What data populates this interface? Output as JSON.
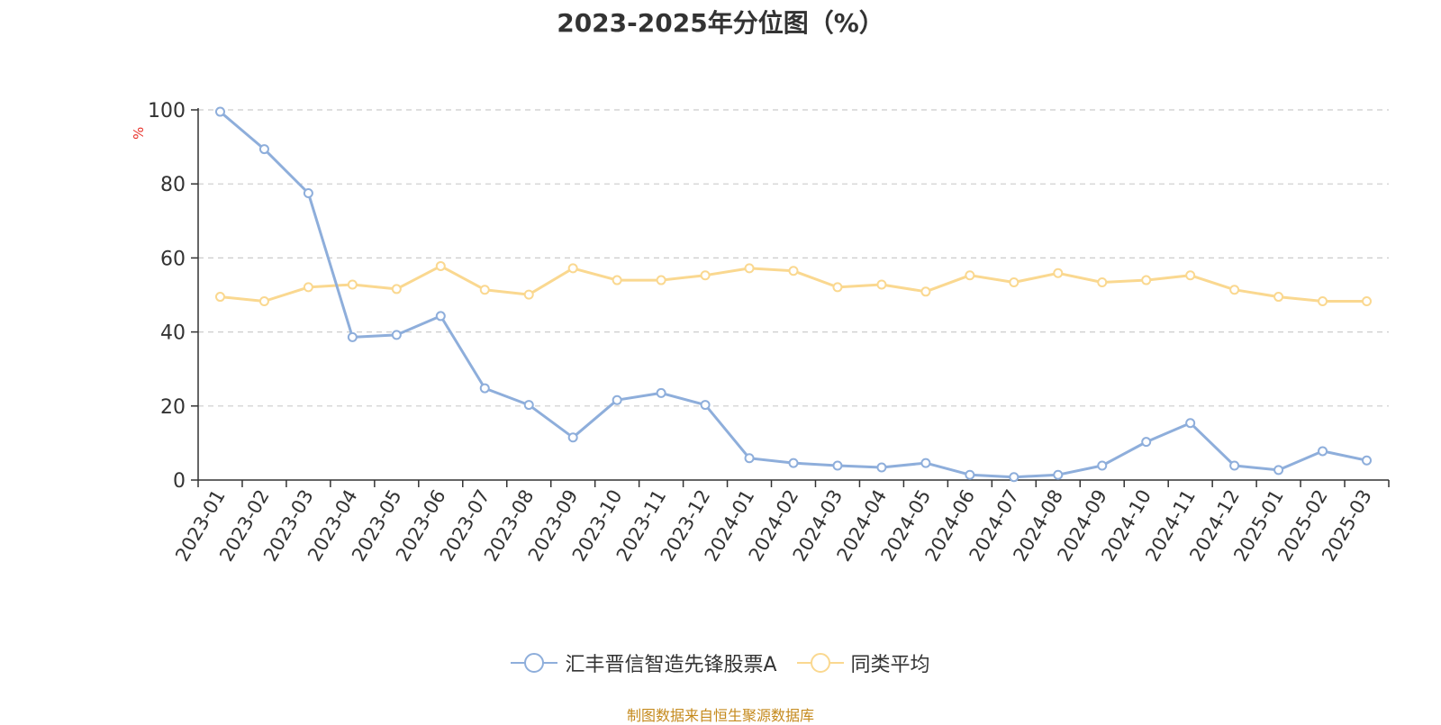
{
  "colors": {
    "series_a": "#8eaedb",
    "series_b": "#fad890",
    "axis": "#333333",
    "grid": "#cccccc",
    "title": "#333333",
    "source": "#c58a1d",
    "unit": "#e8312a"
  },
  "chart_data": {
    "type": "line",
    "title": "2023-2025年分位图（%）",
    "ylabel": "%",
    "ylim": [
      0,
      100
    ],
    "yticks": [
      0,
      20,
      40,
      60,
      80,
      100
    ],
    "grid": true,
    "legend_position": "bottom",
    "categories": [
      "2023-01",
      "2023-02",
      "2023-03",
      "2023-04",
      "2023-05",
      "2023-06",
      "2023-07",
      "2023-08",
      "2023-09",
      "2023-10",
      "2023-11",
      "2023-12",
      "2024-01",
      "2024-02",
      "2024-03",
      "2024-04",
      "2024-05",
      "2024-06",
      "2024-07",
      "2024-08",
      "2024-09",
      "2024-10",
      "2024-11",
      "2024-12",
      "2025-01",
      "2025-02",
      "2025-03"
    ],
    "series": [
      {
        "name": "汇丰晋信智造先锋股票A",
        "values": [
          99.5,
          89.4,
          77.5,
          38.6,
          39.2,
          44.3,
          24.8,
          20.3,
          11.5,
          21.6,
          23.5,
          20.3,
          5.9,
          4.6,
          3.9,
          3.4,
          4.6,
          1.4,
          0.8,
          1.4,
          3.9,
          10.3,
          15.4,
          3.9,
          2.7,
          7.8,
          5.3
        ]
      },
      {
        "name": "同类平均",
        "values": [
          49.5,
          48.3,
          52.1,
          52.8,
          51.6,
          57.8,
          51.4,
          50.1,
          57.2,
          54.0,
          54.0,
          55.3,
          57.2,
          56.5,
          52.1,
          52.8,
          50.9,
          55.3,
          53.4,
          55.9,
          53.4,
          54.0,
          55.3,
          51.4,
          49.5,
          48.3,
          48.3
        ]
      }
    ]
  },
  "source_text": "制图数据来自恒生聚源数据库"
}
